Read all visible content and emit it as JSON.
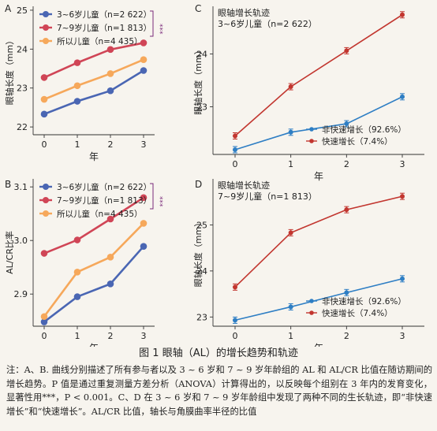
{
  "chart_data": [
    {
      "panel": "A",
      "type": "line",
      "x": [
        0,
        1,
        2,
        3
      ],
      "xlabel": "年",
      "ylabel": "眼轴长度（mm）",
      "ylim": [
        21.8,
        25.1
      ],
      "yticks": [
        22,
        23,
        24,
        25
      ],
      "series": [
        {
          "name": "3~6岁儿童（n=2 622）",
          "color": "#4a66b3",
          "values": [
            22.33,
            22.66,
            22.93,
            23.45
          ]
        },
        {
          "name": "7~9岁儿童（n=1 813）",
          "color": "#d04556",
          "values": [
            23.27,
            23.65,
            23.99,
            24.16
          ]
        },
        {
          "name": "所以儿童（n=4 435）",
          "color": "#f6a85b",
          "values": [
            22.71,
            23.06,
            23.37,
            23.73
          ]
        }
      ],
      "significance": "***",
      "legend": "top-left"
    },
    {
      "panel": "B",
      "type": "line",
      "x": [
        0,
        1,
        2,
        3
      ],
      "xlabel": "年",
      "ylabel": "AL/CR比率",
      "ylim": [
        2.84,
        3.115
      ],
      "yticks": [
        2.9,
        3.0,
        3.1
      ],
      "series": [
        {
          "name": "3~6岁儿童（n=2 622）",
          "color": "#4a66b3",
          "values": [
            2.848,
            2.895,
            2.919,
            2.989
          ]
        },
        {
          "name": "7~9岁儿童（n=1 813）",
          "color": "#d04556",
          "values": [
            2.976,
            3.001,
            3.04,
            3.08
          ]
        },
        {
          "name": "所以儿童（n=4 435）",
          "color": "#f6a85b",
          "values": [
            2.858,
            2.941,
            2.969,
            3.032
          ]
        }
      ],
      "significance": "***",
      "legend": "top-left"
    },
    {
      "panel": "C",
      "type": "line",
      "title": "眼轴增长轨迹",
      "subtitle": "3~6岁儿童（n=2 622）",
      "x": [
        0,
        1,
        2,
        3
      ],
      "xlabel": "年",
      "ylabel": "眼轴长度（mm）",
      "ylim": [
        22.1,
        24.9
      ],
      "yticks": [
        23,
        24
      ],
      "series": [
        {
          "name": "非快速增长（92.6%）",
          "color": "#2e7ec4",
          "values": [
            22.19,
            22.52,
            22.68,
            23.19
          ]
        },
        {
          "name": "快速增长（7.4%）",
          "color": "#c2362f",
          "values": [
            22.45,
            23.38,
            24.06,
            24.74
          ]
        }
      ],
      "legend": "bottom-right"
    },
    {
      "panel": "D",
      "type": "line",
      "title": "眼轴增长轨迹",
      "subtitle": "7~9岁儿童（n=1 813）",
      "x": [
        0,
        1,
        2,
        3
      ],
      "xlabel": "年",
      "ylabel": "眼轴长度（mm）",
      "ylim": [
        22.8,
        26.0
      ],
      "yticks": [
        23,
        24,
        25
      ],
      "series": [
        {
          "name": "非快速增长（92.6%）",
          "color": "#2e7ec4",
          "values": [
            22.93,
            23.22,
            23.53,
            23.83
          ]
        },
        {
          "name": "快速增长（7.4%）",
          "color": "#c2362f",
          "values": [
            23.65,
            24.83,
            25.33,
            25.62
          ]
        }
      ],
      "legend": "bottom-right"
    }
  ],
  "caption": "图 1   眼轴（AL）的增长趋势和轨迹",
  "note": "注：A、B. 曲线分别描述了所有参与者以及 3 ~ 6 岁和 7 ~ 9 岁年龄组的 AL 和 AL/CR 比值在随访期间的增长趋势。P 值是通过重复测量方差分析（ANOVA）计算得出的，以反映每个组别在 3 年内的发育变化，显著性用***，P < 0.001。C、D 在 3 ~ 6 岁和 7 ~ 9 岁年龄组中发现了两种不同的生长轨迹，即“非快速增长”和“快速增长”。AL/CR 比值，轴长与角膜曲率半径的比值"
}
